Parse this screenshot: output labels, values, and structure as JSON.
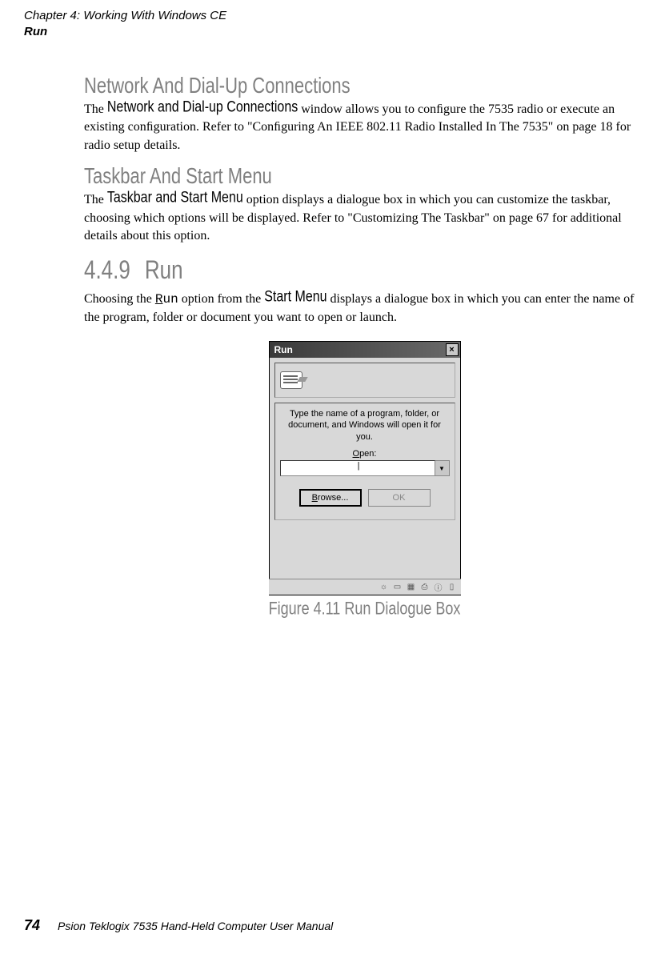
{
  "header": {
    "chapter": "Chapter 4:  Working With Windows CE",
    "section": "Run"
  },
  "sections": {
    "network": {
      "heading": "Network And Dial-Up Connections",
      "term": "Network and Dial-up Connections",
      "body_pre": "The ",
      "body_post": " window allows you to conﬁgure the 7535 radio or execute an existing conﬁguration. Refer to \"Conﬁguring An IEEE 802.11 Radio Installed In The 7535\" on page 18 for radio setup details."
    },
    "taskbar": {
      "heading": "Taskbar And Start Menu",
      "term": "Taskbar and Start Menu",
      "body_pre": "The  ",
      "body_post": "  option displays a dialogue box in which you can customize the taskbar, choosing which options will be displayed. Refer to \"Customizing The Taskbar\" on page 67 for additional details about this option."
    },
    "run": {
      "number": "4.4.9",
      "heading": "Run",
      "body_pre": "Choosing the ",
      "run_label_first": "R",
      "run_label_rest": "un",
      "body_mid": " option from the ",
      "term": "Start Menu",
      "body_post": " displays a dialogue box in which you can enter the name of the program, folder or document you want to open or launch."
    }
  },
  "dialog": {
    "title": "Run",
    "close": "×",
    "instruction": "Type the name of a program, folder, or document, and Windows will open it for you.",
    "open_label_u": "O",
    "open_label_rest": "pen:",
    "input_value": "|",
    "dropdown": "▼",
    "browse_u": "B",
    "browse_rest": "rowse...",
    "ok": "OK",
    "tray": {
      "i1": "☼",
      "i2": "▭",
      "i3": "▦",
      "i4": "⎙",
      "i5": "ⓘ",
      "i6": "▯"
    }
  },
  "figure_caption": "Figure 4.11 Run Dialogue Box",
  "footer": {
    "page": "74",
    "text": "Psion Teklogix 7535 Hand-Held Computer User Manual"
  }
}
